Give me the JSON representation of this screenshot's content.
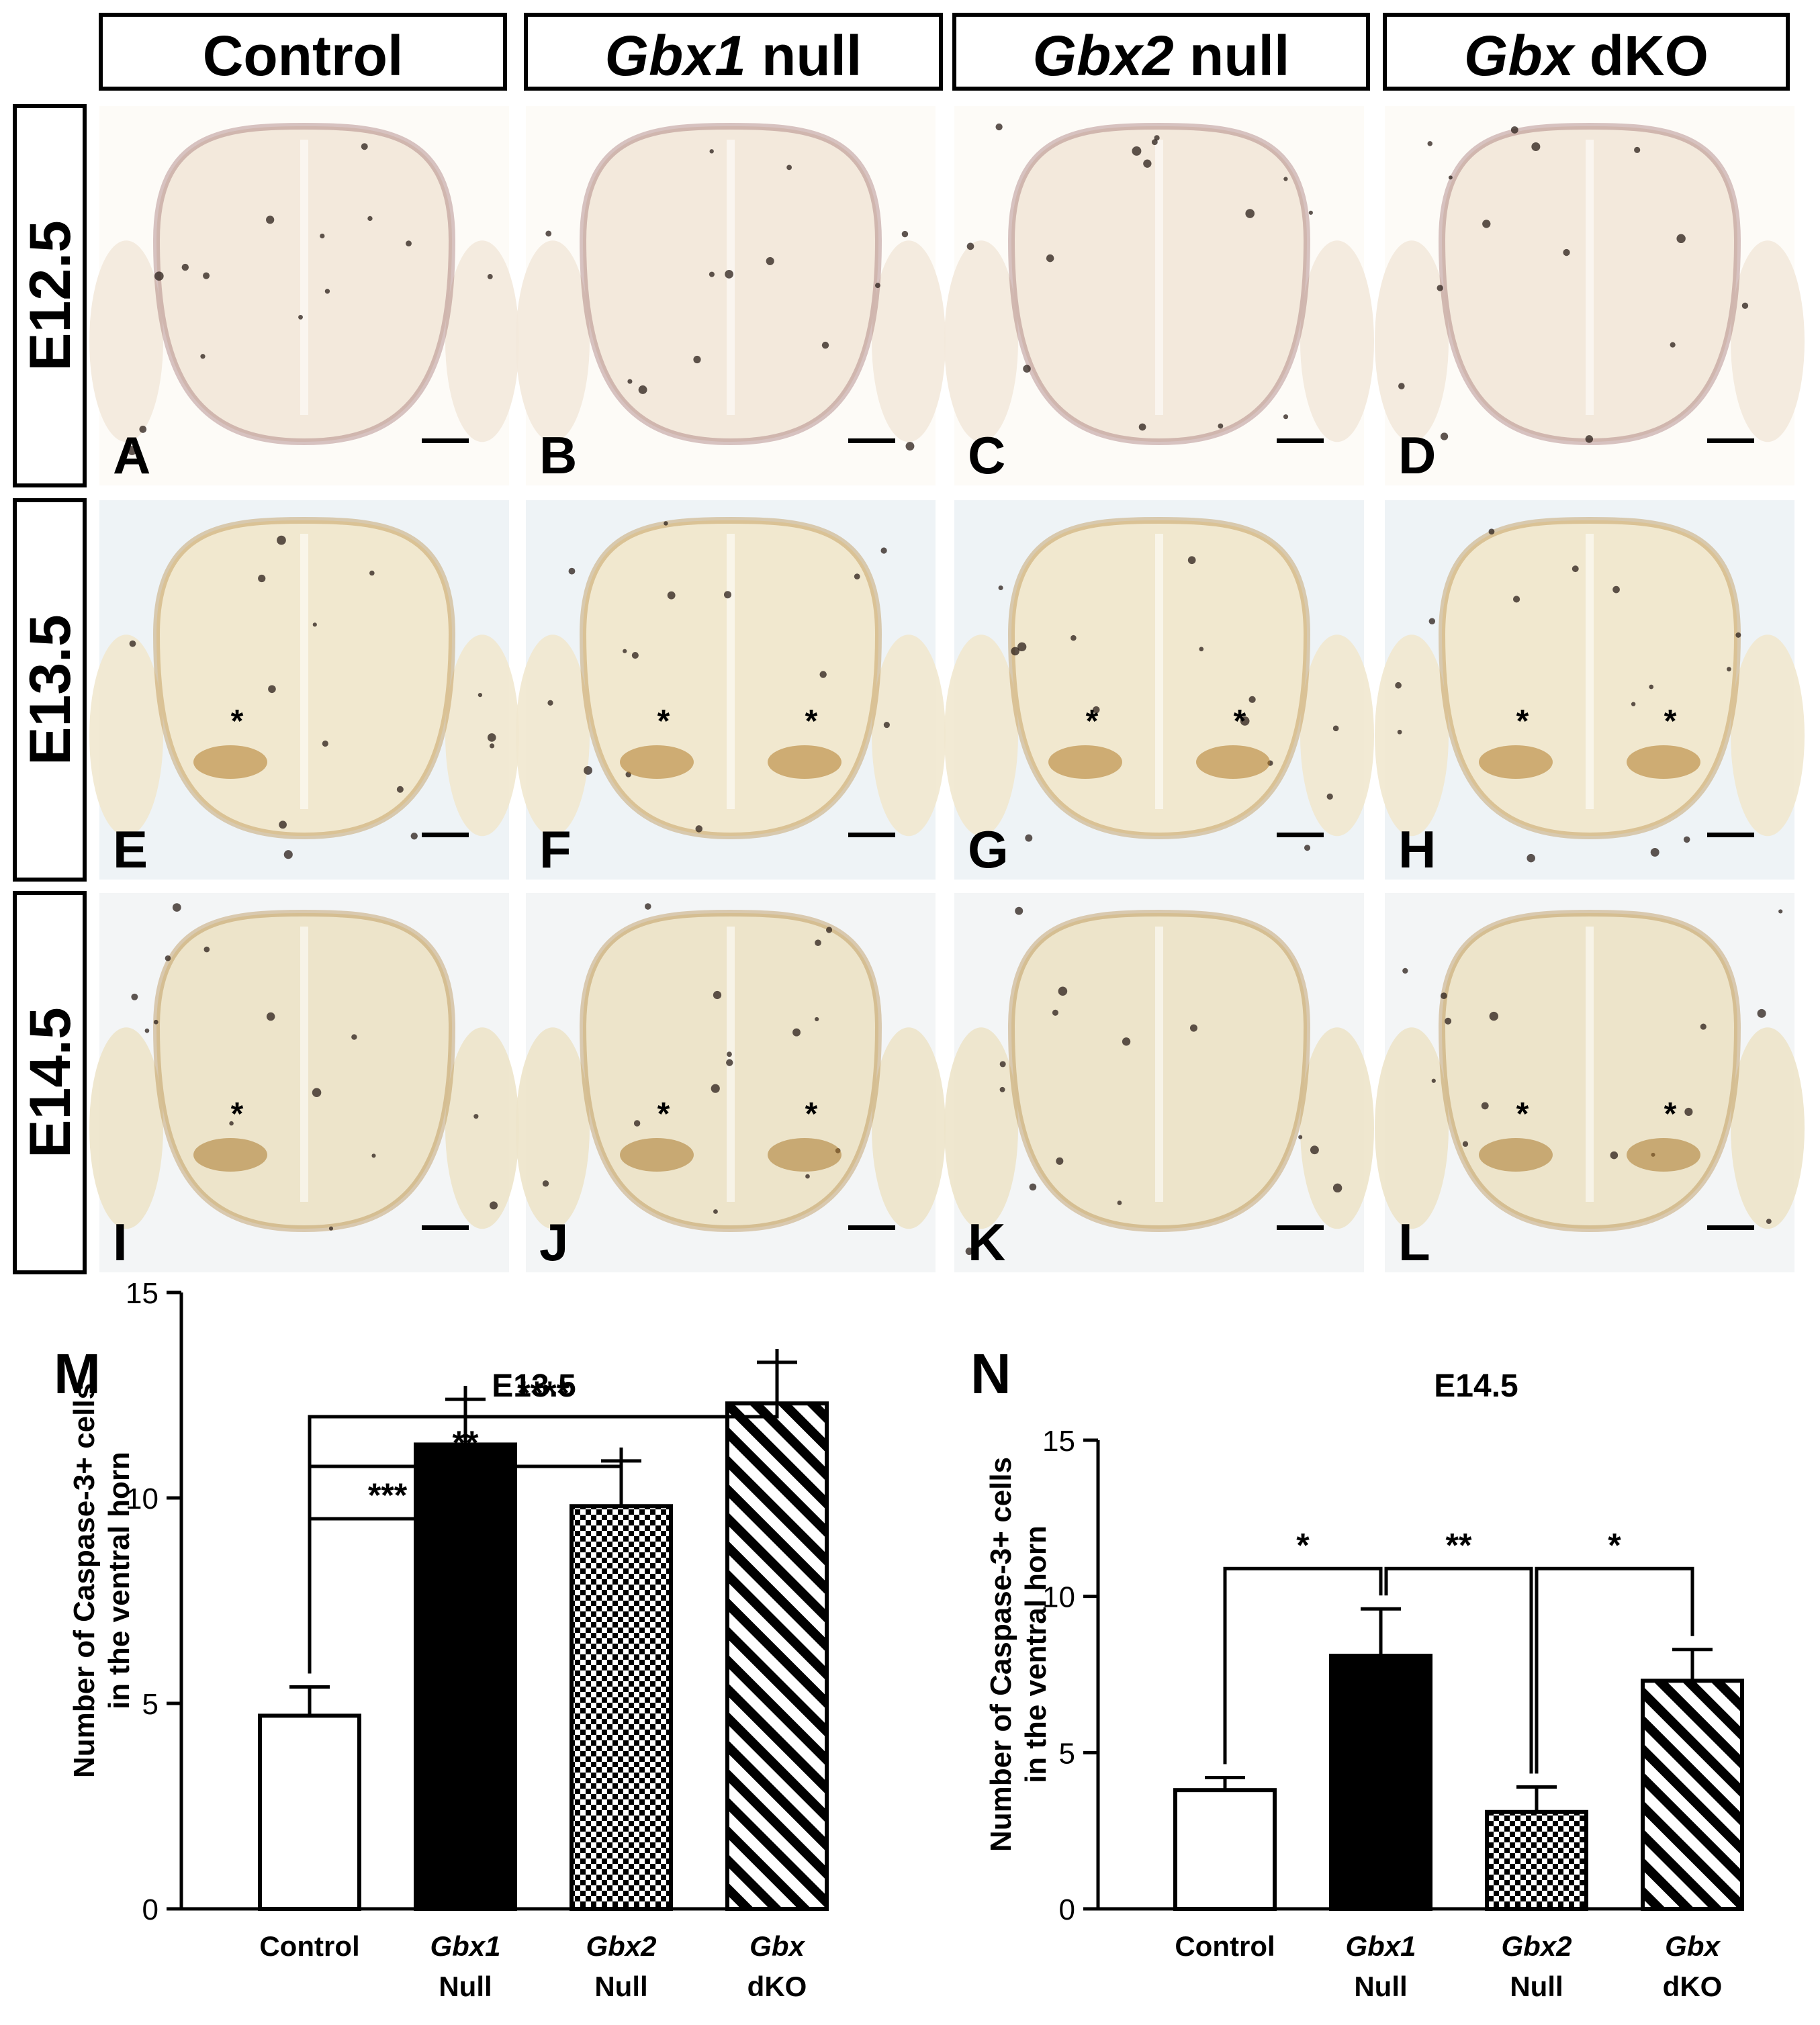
{
  "columns": [
    {
      "italic": "",
      "plain": "Control"
    },
    {
      "italic": "Gbx1",
      "plain": " null"
    },
    {
      "italic": "Gbx2",
      "plain": " null"
    },
    {
      "italic": "Gbx",
      "plain": " dKO"
    }
  ],
  "rows": [
    "E12.5",
    "E13.5",
    "E14.5"
  ],
  "panel_letters": [
    "A",
    "B",
    "C",
    "D",
    "E",
    "F",
    "G",
    "H",
    "I",
    "J",
    "K",
    "L"
  ],
  "marker": "*",
  "colors": {
    "e12_tissue": "#f3e9dc",
    "e12_background": "#fdfbf7",
    "e12_stain": "#8e5a5a",
    "e13_tissue": "#f1e8cf",
    "e13_background": "#eef3f6",
    "e13_stain": "#b07a28",
    "e14_tissue": "#ede4ca",
    "e14_background": "#f3f5f6",
    "e14_stain": "#a9782c",
    "bar_solid": "#000000",
    "bar_open": "#ffffff"
  },
  "chart_data": [
    {
      "panel": "M",
      "type": "bar",
      "title": "E13.5",
      "ylabel": "Number of Caspase-3+ cells in the ventral horn",
      "ylim": [
        0,
        15
      ],
      "yticks": [
        0,
        5,
        10,
        15
      ],
      "categories": [
        {
          "italic": "",
          "plain": "Control"
        },
        {
          "italic": "Gbx1",
          "plain": "Null"
        },
        {
          "italic": "Gbx2",
          "plain": "Null"
        },
        {
          "italic": "Gbx",
          "plain": "dKO"
        }
      ],
      "fills": [
        "open",
        "solid",
        "checker",
        "hatch"
      ],
      "values": [
        4.7,
        11.3,
        9.8,
        12.3
      ],
      "errors": [
        0.7,
        1.1,
        1.1,
        1.0
      ],
      "significance": [
        {
          "from": 0,
          "to": 1,
          "label": "***"
        },
        {
          "from": 0,
          "to": 2,
          "label": "**"
        },
        {
          "from": 0,
          "to": 3,
          "label": "****"
        }
      ]
    },
    {
      "panel": "N",
      "type": "bar",
      "title": "E14.5",
      "ylabel": "Number of Caspase-3+ cells in the ventral horn",
      "ylim": [
        0,
        15
      ],
      "yticks": [
        0,
        5,
        10,
        15
      ],
      "categories": [
        {
          "italic": "",
          "plain": "Control"
        },
        {
          "italic": "Gbx1",
          "plain": "Null"
        },
        {
          "italic": "Gbx2",
          "plain": "Null"
        },
        {
          "italic": "Gbx",
          "plain": "dKO"
        }
      ],
      "fills": [
        "open",
        "solid",
        "checker",
        "hatch"
      ],
      "values": [
        3.8,
        8.1,
        3.1,
        7.3
      ],
      "errors": [
        0.4,
        1.5,
        0.8,
        1.0
      ],
      "significance": [
        {
          "from": 0,
          "to": 1,
          "label": "*"
        },
        {
          "from": 1,
          "to": 2,
          "label": "**"
        },
        {
          "from": 2,
          "to": 3,
          "label": "*"
        }
      ]
    }
  ]
}
